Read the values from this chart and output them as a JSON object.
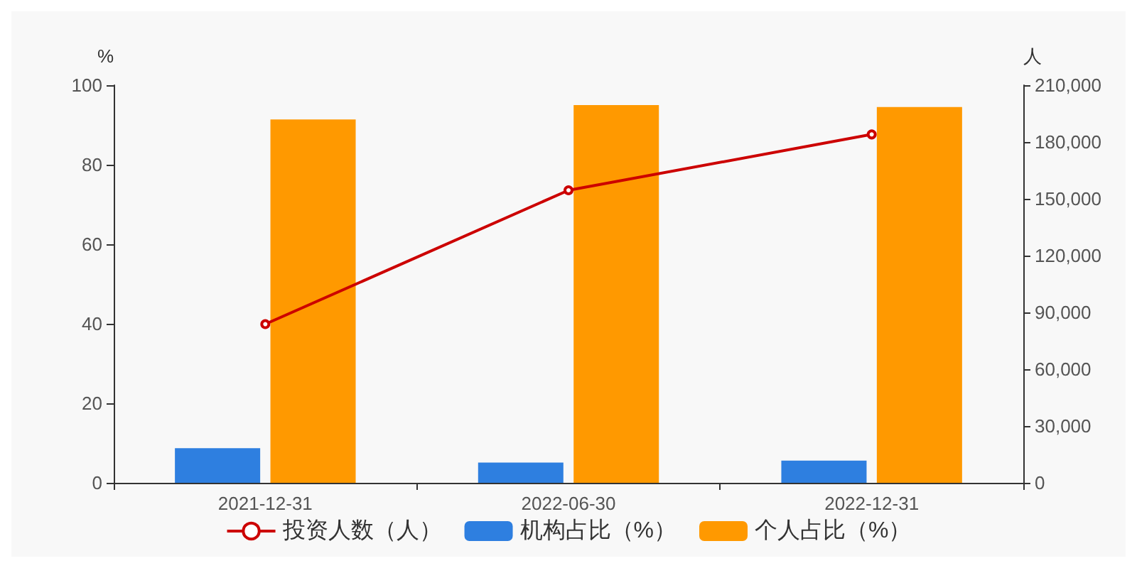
{
  "chart_data": {
    "type": "bar",
    "categories": [
      "2021-12-31",
      "2022-06-30",
      "2022-12-31"
    ],
    "ylabel": "%",
    "y2label": "人",
    "series": [
      {
        "name": "投资人数（人）",
        "type": "line",
        "axis": "y2",
        "color": "#cc0000",
        "marker": "circle",
        "values": [
          83800,
          154500,
          184000
        ]
      },
      {
        "name": "机构占比（%）",
        "color": "#2e7fe0",
        "values": [
          8.7,
          5.1,
          5.6
        ]
      },
      {
        "name": "个人占比（%）",
        "color": "#ff9900",
        "values": [
          91.4,
          95.0,
          94.5
        ]
      }
    ],
    "ylim": [
      0,
      100
    ],
    "yticks": [
      0,
      20,
      40,
      60,
      80,
      100
    ],
    "y2lim": [
      0,
      210000
    ],
    "y2ticks": [
      0,
      {
        "value": 30000,
        "label": "30,000"
      },
      {
        "value": 60000,
        "label": "60,000"
      },
      {
        "value": 90000,
        "label": "90,000"
      },
      {
        "value": 120000,
        "label": "120,000"
      },
      {
        "value": 150000,
        "label": "150,000"
      },
      {
        "value": 180000,
        "label": "180,000"
      },
      {
        "value": 210000,
        "label": "210,000"
      }
    ],
    "grid": false,
    "legend": "bottom"
  }
}
